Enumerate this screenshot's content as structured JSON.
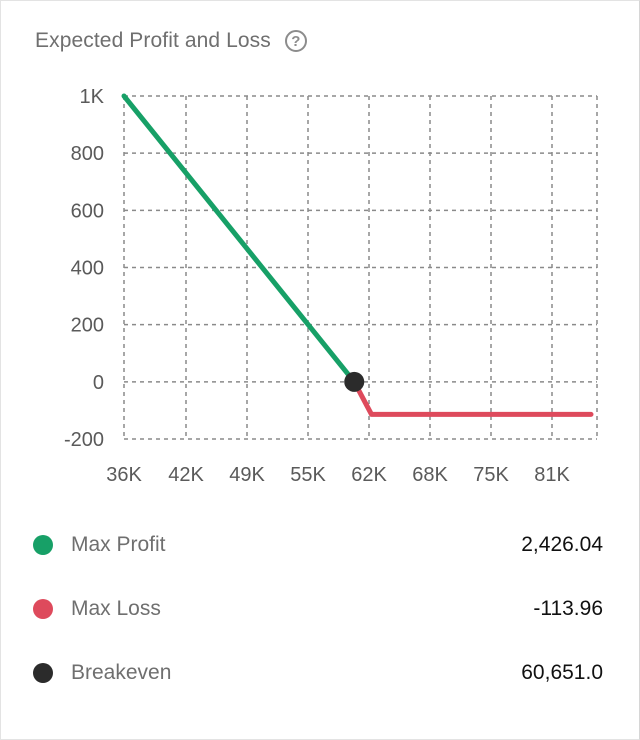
{
  "header": {
    "title": "Expected Profit and Loss",
    "help_glyph": "?"
  },
  "colors": {
    "profit": "#17a067",
    "loss": "#de4a5c",
    "breakeven": "#2b2b2b",
    "grid": "#8a8a8a",
    "tick": "#5a5a5a"
  },
  "chart_data": {
    "type": "line",
    "title": "",
    "xlabel": "",
    "ylabel": "",
    "x_ticks": [
      "36K",
      "42K",
      "49K",
      "55K",
      "62K",
      "68K",
      "75K",
      "81K"
    ],
    "y_ticks": [
      "1K",
      "800",
      "600",
      "400",
      "200",
      "0",
      "-200"
    ],
    "xlim": [
      36000,
      86000
    ],
    "ylim": [
      -200,
      1000
    ],
    "grid": true,
    "series": [
      {
        "color_key": "profit",
        "x": [
          36000,
          60651
        ],
        "y": [
          1000,
          0
        ]
      },
      {
        "color_key": "loss",
        "x": [
          60651,
          62500,
          86000
        ],
        "y": [
          0,
          -113.96,
          -113.96
        ]
      }
    ],
    "breakeven_point": {
      "x": 60651,
      "y": 0
    }
  },
  "legend": [
    {
      "label": "Max Profit",
      "value": "2,426.04",
      "color_key": "profit"
    },
    {
      "label": "Max Loss",
      "value": "-113.96",
      "color_key": "loss"
    },
    {
      "label": "Breakeven",
      "value": "60,651.0",
      "color_key": "breakeven"
    }
  ]
}
